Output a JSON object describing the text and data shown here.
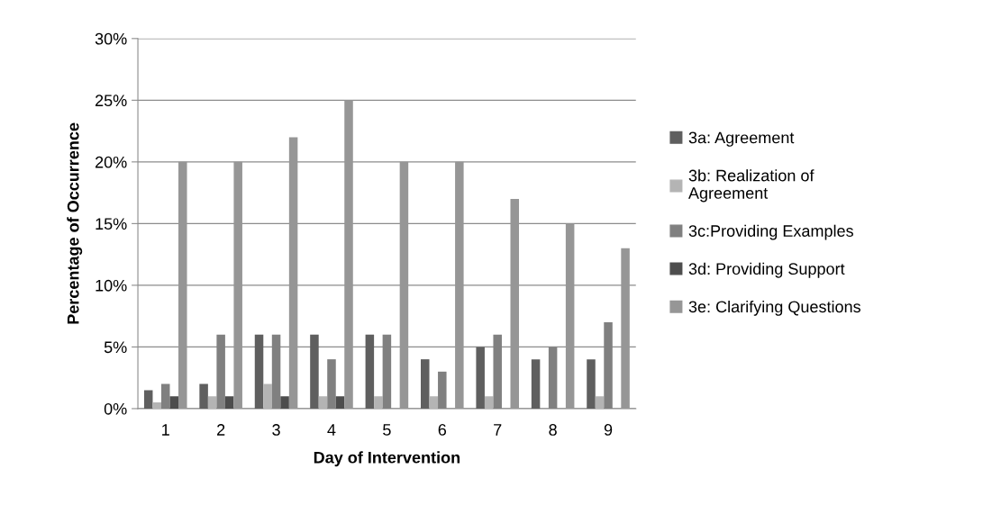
{
  "chart_data": {
    "type": "bar",
    "xlabel": "Day of Intervention",
    "ylabel": "Percentage of Occurrence",
    "categories": [
      "1",
      "2",
      "3",
      "4",
      "5",
      "6",
      "7",
      "8",
      "9"
    ],
    "series": [
      {
        "name": "3a: Agreement",
        "color": "#5f5f5f",
        "values": [
          1.5,
          2,
          6,
          6,
          6,
          4,
          5,
          4,
          4
        ]
      },
      {
        "name": "3b: Realization of\nAgreement",
        "color": "#b4b4b4",
        "values": [
          0.5,
          1,
          2,
          1,
          1,
          1,
          1,
          null,
          1
        ]
      },
      {
        "name": "3c:Providing Examples",
        "color": "#808080",
        "values": [
          2,
          6,
          6,
          4,
          6,
          3,
          6,
          5,
          7
        ]
      },
      {
        "name": "3d: Providing Support",
        "color": "#4d4d4d",
        "values": [
          1,
          1,
          1,
          1,
          null,
          null,
          null,
          null,
          null
        ]
      },
      {
        "name": "3e: Clarifying Questions",
        "color": "#969696",
        "values": [
          20,
          20,
          22,
          25,
          20,
          20,
          17,
          15,
          13
        ]
      }
    ],
    "ylim": [
      0,
      30
    ],
    "yticks": [
      {
        "value": 0,
        "label": "0%"
      },
      {
        "value": 5,
        "label": "5%"
      },
      {
        "value": 10,
        "label": "10%"
      },
      {
        "value": 15,
        "label": "15%"
      },
      {
        "value": 20,
        "label": "20%"
      },
      {
        "value": 25,
        "label": "25%"
      },
      {
        "value": 30,
        "label": "30%"
      }
    ],
    "grid": "y",
    "legend": "right"
  }
}
